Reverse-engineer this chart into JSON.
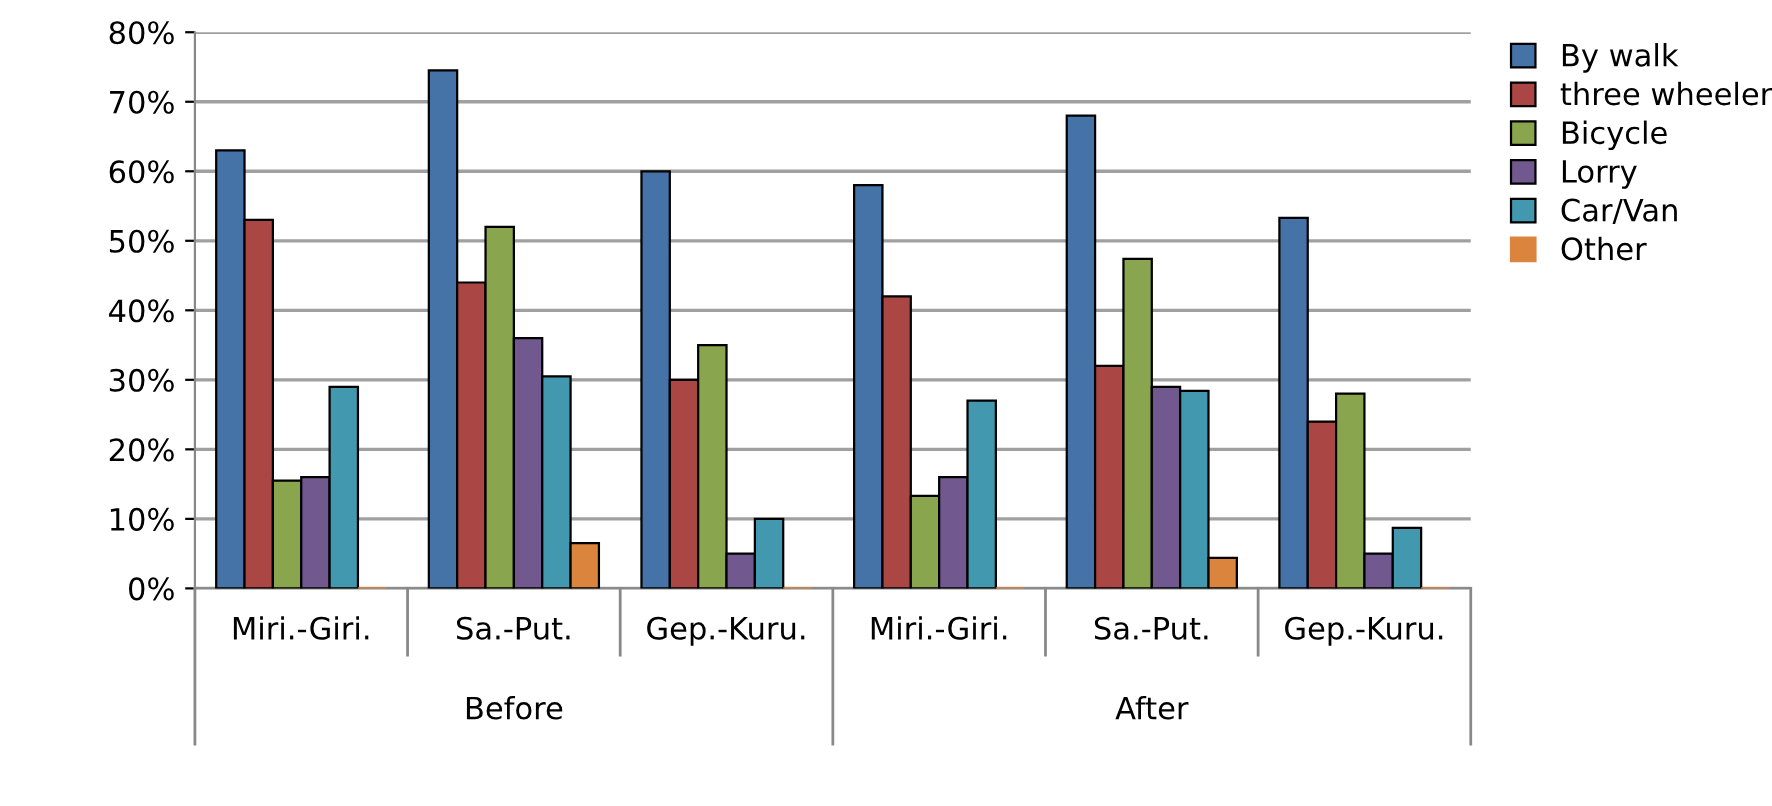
{
  "chart_data": {
    "type": "bar",
    "categories": [
      "Miri.-Giri.",
      "Sa.-Put.",
      "Gep.-Kuru.",
      "Miri.-Giri.",
      "Sa.-Put.",
      "Gep.-Kuru."
    ],
    "annotations": [
      "Before",
      "After"
    ],
    "series": [
      {
        "name": "By walk",
        "color": "#4572a7",
        "values": [
          63,
          74.5,
          60,
          58,
          68,
          53.3
        ]
      },
      {
        "name": "three wheeler",
        "color": "#aa4643",
        "values": [
          53,
          44,
          30,
          42,
          32,
          24
        ]
      },
      {
        "name": "Bicycle",
        "color": "#89a54e",
        "values": [
          15.5,
          52,
          35,
          13.3,
          47.4,
          28
        ]
      },
      {
        "name": "Lorry",
        "color": "#71588f",
        "values": [
          16,
          36,
          5,
          16,
          29,
          5
        ]
      },
      {
        "name": "Car/Van",
        "color": "#4198af",
        "values": [
          29,
          30.5,
          10,
          27,
          28.4,
          8.7
        ]
      },
      {
        "name": "Other",
        "color": "#db843d",
        "values": [
          0,
          6.5,
          0,
          0,
          4.4,
          0
        ]
      }
    ],
    "ylim": [
      0,
      80
    ],
    "yticks": [
      {
        "value": 0,
        "label": "0%"
      },
      {
        "value": 10,
        "label": "10%"
      },
      {
        "value": 20,
        "label": "20%"
      },
      {
        "value": 30,
        "label": "30%"
      },
      {
        "value": 40,
        "label": "40%"
      },
      {
        "value": 50,
        "label": "50%"
      },
      {
        "value": 60,
        "label": "60%"
      },
      {
        "value": 70,
        "label": "70%"
      },
      {
        "value": 80,
        "label": "80%"
      }
    ],
    "grid": "y",
    "legend": "top right"
  }
}
